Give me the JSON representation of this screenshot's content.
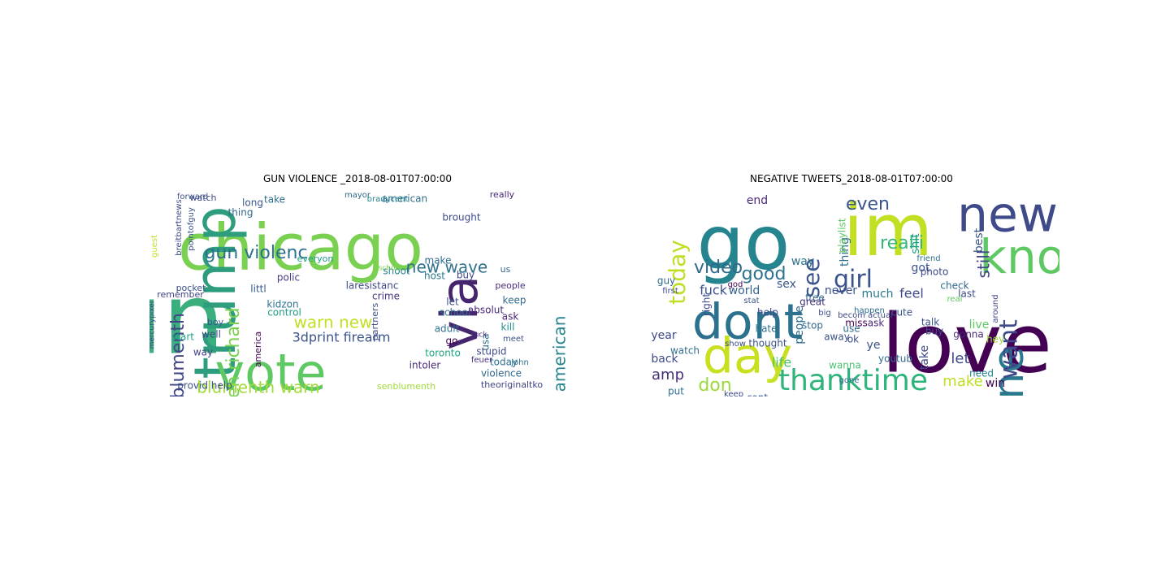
{
  "clouds": [
    {
      "title": "GUN VIOLENCE _2018-08-01T07:00:00",
      "words": [
        [
          "gun",
          120,
          162,
          402,
          "#3aae7d",
          0
        ],
        [
          "chicago",
          78,
          370,
          310,
          "#7ad151",
          0
        ],
        [
          "trump",
          70,
          270,
          360,
          "#2d9d7e",
          -90
        ],
        [
          "vote",
          62,
          333,
          463,
          "#5ec962",
          0
        ],
        [
          "via",
          62,
          570,
          385,
          "#46256f",
          -90
        ],
        [
          "gun violenc",
          22,
          315,
          312,
          "#2c718e",
          0
        ],
        [
          "new wave",
          20,
          550,
          330,
          "#30718e",
          0
        ],
        [
          "sen richard",
          22,
          288,
          440,
          "#7ad151",
          -90
        ],
        [
          "richard blumenth",
          22,
          220,
          480,
          "#414487",
          -90
        ],
        [
          "blumenth warn",
          20,
          318,
          478,
          "#a0da39",
          0
        ],
        [
          "warn new",
          20,
          410,
          398,
          "#c2df23",
          0
        ],
        [
          "wave american",
          20,
          690,
          465,
          "#25848e",
          -90
        ],
        [
          "3dprint firearm",
          16,
          420,
          416,
          "#3b528b",
          0
        ],
        [
          "american",
          12,
          498,
          245,
          "#2e6e8e",
          0
        ],
        [
          "brought",
          12,
          568,
          268,
          "#3e4a89",
          0
        ],
        [
          "really",
          11,
          618,
          240,
          "#482878",
          0
        ],
        [
          "mayor",
          10,
          440,
          240,
          "#31688e",
          0
        ],
        [
          "bradycent",
          10,
          477,
          245,
          "#26828e",
          0
        ],
        [
          "watch",
          11,
          250,
          244,
          "#404788",
          0
        ],
        [
          "long",
          12,
          311,
          250,
          "#38588c",
          0
        ],
        [
          "take",
          12,
          338,
          246,
          "#2e6e8e",
          0
        ],
        [
          "thing",
          12,
          296,
          262,
          "#31688e",
          0
        ],
        [
          "forward",
          10,
          237,
          242,
          "#3b528b",
          0
        ],
        [
          "polic",
          12,
          355,
          342,
          "#443983",
          0
        ],
        [
          "littl",
          12,
          318,
          356,
          "#375a8c",
          0
        ],
        [
          "laresistanc",
          12,
          458,
          352,
          "#3e4a89",
          0
        ],
        [
          "shoot",
          12,
          488,
          334,
          "#26828e",
          0
        ],
        [
          "host",
          12,
          535,
          340,
          "#2a788e",
          0
        ],
        [
          "make",
          12,
          539,
          321,
          "#2e6e8e",
          0
        ],
        [
          "buy",
          12,
          573,
          339,
          "#3e4a89",
          0
        ],
        [
          "us",
          11,
          622,
          332,
          "#31688e",
          0
        ],
        [
          "people",
          11,
          628,
          352,
          "#472d7b",
          0
        ],
        [
          "everyon",
          11,
          388,
          319,
          "#1f9a8a",
          0
        ],
        [
          "kidzon",
          12,
          348,
          375,
          "#2c718e",
          0
        ],
        [
          "control",
          12,
          350,
          385,
          "#1e9c89",
          0
        ],
        [
          "crime",
          12,
          475,
          365,
          "#46327e",
          0
        ],
        [
          "partners",
          11,
          462,
          396,
          "#3b528b",
          -90
        ],
        [
          "school",
          12,
          560,
          385,
          "#2c718e",
          0
        ],
        [
          "absolut",
          12,
          598,
          382,
          "#482878",
          0
        ],
        [
          "keep",
          12,
          633,
          370,
          "#31688e",
          0
        ],
        [
          "ask",
          12,
          628,
          390,
          "#482878",
          0
        ],
        [
          "kill",
          12,
          625,
          403,
          "#228d8d",
          0
        ],
        [
          "adult",
          12,
          550,
          405,
          "#2c718e",
          0
        ],
        [
          "go",
          12,
          556,
          420,
          "#440154",
          0
        ],
        [
          "let",
          12,
          557,
          372,
          "#3b528b",
          0
        ],
        [
          "usa",
          12,
          598,
          421,
          "#2e6e8e",
          -90
        ],
        [
          "remember",
          11,
          222,
          363,
          "#414487",
          0
        ],
        [
          "pocket",
          11,
          235,
          355,
          "#3b528b",
          0
        ],
        [
          "boy",
          11,
          265,
          397,
          "#38588c",
          0
        ],
        [
          "well",
          12,
          260,
          412,
          "#3e4a89",
          0
        ],
        [
          "start",
          12,
          225,
          415,
          "#1f9e89",
          0
        ],
        [
          "way",
          12,
          250,
          434,
          "#414487",
          0
        ],
        [
          "toronto",
          12,
          545,
          435,
          "#21a585",
          0
        ],
        [
          "stupid",
          12,
          605,
          433,
          "#3e4a89",
          0
        ],
        [
          "today",
          12,
          620,
          446,
          "#2e6e8e",
          0
        ],
        [
          "intoler",
          12,
          523,
          450,
          "#482878",
          0
        ],
        [
          "violence",
          12,
          617,
          460,
          "#31688e",
          0
        ],
        [
          "senblumenth",
          11,
          500,
          476,
          "#a0da39",
          0
        ],
        [
          "theoriginaltko",
          11,
          630,
          474,
          "#414487",
          0
        ],
        [
          "provid help",
          12,
          252,
          475,
          "#3b528b",
          0
        ],
        [
          "america",
          11,
          318,
          430,
          "#440154",
          -90
        ],
        [
          "guest",
          10,
          190,
          303,
          "#bddf26",
          -90
        ],
        [
          "breitbartnews",
          10,
          220,
          280,
          "#3e4a89",
          -90
        ],
        [
          "pointofguy",
          10,
          235,
          282,
          "#3b528b",
          -90
        ],
        [
          "mercurypixel",
          9,
          187,
          400,
          "#3e4a89",
          -90
        ],
        [
          "school",
          9,
          480,
          330,
          "#7ad151",
          0
        ],
        [
          "fuck",
          9,
          590,
          412,
          "#46327e",
          0
        ],
        [
          "feuer",
          10,
          593,
          443,
          "#46327e",
          0
        ],
        [
          "meet",
          10,
          632,
          417,
          "#3b528b",
          0
        ],
        [
          "john",
          10,
          640,
          446,
          "#2e6e8e",
          0
        ]
      ]
    },
    {
      "title": "NEGATIVE TWEETS_2018-08-01T07:00:00",
      "words": [
        [
          "love",
          100,
          1190,
          430,
          "#440154",
          0
        ],
        [
          "go",
          92,
          915,
          305,
          "#25848e",
          0
        ],
        [
          "im",
          88,
          1093,
          290,
          "#c2df23",
          0
        ],
        [
          "know",
          58,
          1282,
          320,
          "#5ec962",
          0
        ],
        [
          "new",
          60,
          1240,
          268,
          "#3e4a89",
          0
        ],
        [
          "dont",
          60,
          920,
          400,
          "#2c728e",
          0
        ],
        [
          "day",
          60,
          920,
          442,
          "#c8e020",
          0
        ],
        [
          "one",
          52,
          1245,
          475,
          "#2a788e",
          -90
        ],
        [
          "thanktime",
          36,
          1050,
          470,
          "#2fb47c",
          0
        ],
        [
          "today",
          28,
          835,
          335,
          "#bddf26",
          -90
        ],
        [
          "video",
          22,
          884,
          330,
          "#31688e",
          0
        ],
        [
          "good",
          22,
          940,
          338,
          "#2c728e",
          0
        ],
        [
          "see",
          28,
          1000,
          342,
          "#3a548c",
          -90
        ],
        [
          "even",
          22,
          1068,
          252,
          "#3a548c",
          0
        ],
        [
          "realli",
          22,
          1110,
          300,
          "#35b779",
          0
        ],
        [
          "girl",
          30,
          1050,
          345,
          "#3b528b",
          0
        ],
        [
          "want",
          30,
          1243,
          430,
          "#3e4a89",
          -90
        ],
        [
          "still",
          20,
          1212,
          325,
          "#414487",
          -90
        ],
        [
          "fuck",
          16,
          878,
          358,
          "#3b528b",
          0
        ],
        [
          "amp",
          18,
          822,
          462,
          "#472d7b",
          0
        ],
        [
          "don",
          22,
          880,
          475,
          "#9bd93c",
          0
        ],
        [
          "world",
          14,
          916,
          358,
          "#34618d",
          0
        ],
        [
          "end",
          14,
          932,
          247,
          "#482878",
          0
        ],
        [
          "much",
          14,
          1080,
          362,
          "#2a788e",
          0
        ],
        [
          "feel",
          16,
          1122,
          362,
          "#3e4a89",
          0
        ],
        [
          "never",
          14,
          1035,
          358,
          "#3b528b",
          0
        ],
        [
          "people",
          14,
          984,
          400,
          "#2e6e8e",
          -90
        ],
        [
          "sex",
          14,
          968,
          350,
          "#38588c",
          0
        ],
        [
          "life",
          16,
          962,
          447,
          "#4ac16d",
          0
        ],
        [
          "make",
          18,
          1185,
          470,
          "#bddf26",
          0
        ],
        [
          "let",
          18,
          1182,
          442,
          "#3e4a89",
          0
        ],
        [
          "win",
          14,
          1225,
          472,
          "#440154",
          0
        ],
        [
          "back",
          14,
          818,
          442,
          "#3e4a89",
          0
        ],
        [
          "year",
          14,
          817,
          413,
          "#3e4a89",
          0
        ],
        [
          "guy",
          12,
          820,
          346,
          "#31688e",
          0
        ],
        [
          "got",
          14,
          1133,
          330,
          "#3b528b",
          0
        ],
        [
          "best",
          14,
          1205,
          296,
          "#3a548c",
          -90
        ],
        [
          "thing",
          14,
          1040,
          310,
          "#2e6e8e",
          -90
        ],
        [
          "shit",
          14,
          1127,
          300,
          "#1fa187",
          -90
        ],
        [
          "way",
          14,
          988,
          322,
          "#2c718e",
          0
        ],
        [
          "right",
          12,
          870,
          375,
          "#3e4a89",
          -90
        ],
        [
          "free",
          12,
          1003,
          367,
          "#31688e",
          0
        ],
        [
          "talk",
          12,
          1145,
          397,
          "#3b528b",
          0
        ],
        [
          "ask",
          12,
          1078,
          398,
          "#482878",
          0
        ],
        [
          "ye",
          14,
          1075,
          425,
          "#3b528b",
          0
        ],
        [
          "youtub",
          12,
          1102,
          442,
          "#31688e",
          0
        ],
        [
          "take",
          14,
          1138,
          440,
          "#3e4a89",
          -90
        ],
        [
          "live",
          14,
          1205,
          400,
          "#5ec962",
          0
        ],
        [
          "last",
          12,
          1190,
          362,
          "#3e4a89",
          0
        ],
        [
          "hate",
          12,
          943,
          405,
          "#2c718e",
          0
        ],
        [
          "help",
          12,
          945,
          385,
          "#3e4a89",
          0
        ],
        [
          "watch",
          12,
          843,
          432,
          "#2e6e8e",
          0
        ],
        [
          "show",
          10,
          905,
          423,
          "#3e4a89",
          0
        ],
        [
          "thought",
          12,
          945,
          423,
          "#3b528b",
          0
        ],
        [
          "ok",
          12,
          1050,
          418,
          "#3e4a89",
          0
        ],
        [
          "need",
          12,
          1208,
          460,
          "#26828e",
          0
        ],
        [
          "gonna",
          12,
          1192,
          412,
          "#482878",
          0
        ],
        [
          "miss",
          12,
          1054,
          398,
          "#440154",
          0
        ],
        [
          "cute",
          12,
          1110,
          385,
          "#3a548c",
          0
        ],
        [
          "use",
          12,
          1048,
          405,
          "#2e6e8e",
          0
        ],
        [
          "away",
          12,
          1030,
          415,
          "#3b528b",
          0
        ],
        [
          "stop",
          12,
          1000,
          401,
          "#31688e",
          0
        ],
        [
          "put",
          12,
          832,
          482,
          "#2e6e8e",
          0
        ],
        [
          "work",
          12,
          850,
          500,
          "#3e4a89",
          0
        ],
        [
          "cant",
          12,
          932,
          490,
          "#38588c",
          0
        ],
        [
          "us",
          14,
          962,
          492,
          "#3e4a89",
          0
        ],
        [
          "wanna",
          12,
          1040,
          450,
          "#4ac16d",
          0
        ],
        [
          "gone",
          10,
          1045,
          468,
          "#31688e",
          0
        ],
        [
          "becom actual",
          10,
          1065,
          388,
          "#3e4a89",
          0
        ],
        [
          "photo",
          12,
          1150,
          335,
          "#3e4a89",
          0
        ],
        [
          "check",
          12,
          1175,
          352,
          "#31688e",
          0
        ],
        [
          "real",
          10,
          1175,
          368,
          "#5ec962",
          0
        ],
        [
          "buy",
          12,
          1150,
          408,
          "#3e4a89",
          0
        ],
        [
          "hey",
          12,
          1225,
          418,
          "#a0da39",
          0
        ],
        [
          "great",
          12,
          1000,
          372,
          "#46327e",
          0
        ],
        [
          "stat",
          10,
          925,
          370,
          "#3b528b",
          0
        ],
        [
          "god",
          10,
          905,
          350,
          "#440154",
          0
        ],
        [
          "playlist",
          12,
          1037,
          290,
          "#5ec962",
          -90
        ],
        [
          "happen",
          10,
          1070,
          382,
          "#2e6e8e",
          0
        ],
        [
          "around",
          10,
          1225,
          380,
          "#414487",
          -90
        ],
        [
          "big",
          10,
          1015,
          385,
          "#3e4a89",
          0
        ],
        [
          "first",
          10,
          825,
          358,
          "#3e4a89",
          0
        ],
        [
          "keep",
          10,
          903,
          485,
          "#3e4a89",
          0
        ],
        [
          "friend",
          10,
          1143,
          318,
          "#2e6e8e",
          0
        ]
      ]
    }
  ]
}
